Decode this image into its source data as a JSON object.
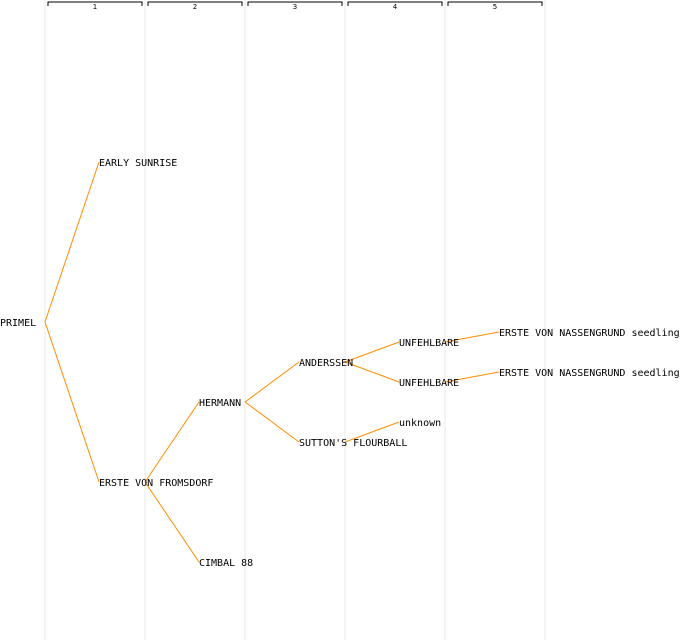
{
  "colors": {
    "background": "#ffffff",
    "edge": "#ff8c00",
    "generation_divider": "#e8e8e8",
    "bracket": "#000000",
    "text": "#000000"
  },
  "generations": [
    "1",
    "2",
    "3",
    "4",
    "5"
  ],
  "tree": {
    "root": "PRIMEL",
    "nodes": [
      {
        "id": "n0",
        "label": "PRIMEL",
        "generation": 0,
        "parent": null
      },
      {
        "id": "n1",
        "label": "EARLY SUNRISE",
        "generation": 1,
        "parent": "n0"
      },
      {
        "id": "n2",
        "label": "ERSTE VON FROMSDORF",
        "generation": 1,
        "parent": "n0"
      },
      {
        "id": "n3",
        "label": "HERMANN",
        "generation": 2,
        "parent": "n2"
      },
      {
        "id": "n4",
        "label": "CIMBAL 88",
        "generation": 2,
        "parent": "n2"
      },
      {
        "id": "n5",
        "label": "ANDERSSEN",
        "generation": 3,
        "parent": "n3"
      },
      {
        "id": "n6",
        "label": "SUTTON'S FLOURBALL",
        "generation": 3,
        "parent": "n3"
      },
      {
        "id": "n7",
        "label": "UNFEHLBARE",
        "generation": 4,
        "parent": "n5"
      },
      {
        "id": "n8",
        "label": "UNFEHLBARE",
        "generation": 4,
        "parent": "n5"
      },
      {
        "id": "n9",
        "label": "unknown",
        "generation": 4,
        "parent": "n6"
      },
      {
        "id": "n10",
        "label": "ERSTE VON NASSENGRUND seedling",
        "generation": 5,
        "parent": "n7"
      },
      {
        "id": "n11",
        "label": "ERSTE VON NASSENGRUND seedling",
        "generation": 5,
        "parent": "n8"
      }
    ]
  }
}
